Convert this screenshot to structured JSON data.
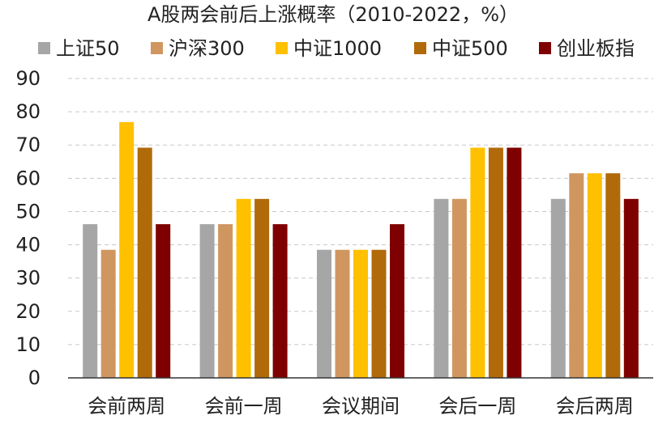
{
  "chart_data": {
    "type": "bar",
    "title": "A股两会前后上涨概率（2010-2022，%）",
    "xlabel": "",
    "ylabel": "",
    "ylim": [
      0,
      90
    ],
    "yticks": [
      "0",
      "10",
      "20",
      "30",
      "40",
      "50",
      "60",
      "70",
      "80",
      "90"
    ],
    "grid": true,
    "legend_position": "top",
    "categories": [
      "会前两周",
      "会前一周",
      "会议期间",
      "会后一周",
      "会后两周"
    ],
    "series": [
      {
        "name": "上证50",
        "color": "#a6a6a6",
        "values": [
          46.2,
          46.2,
          38.5,
          53.8,
          53.8
        ]
      },
      {
        "name": "沪深300",
        "color": "#d09660",
        "values": [
          38.5,
          46.2,
          38.5,
          53.8,
          61.5
        ]
      },
      {
        "name": "中证1000",
        "color": "#ffc000",
        "values": [
          76.9,
          53.8,
          38.5,
          69.2,
          61.5
        ]
      },
      {
        "name": "中证500",
        "color": "#b06a0a",
        "values": [
          69.2,
          53.8,
          38.5,
          69.2,
          61.5
        ]
      },
      {
        "name": "创业板指",
        "color": "#7f0000",
        "values": [
          46.2,
          46.2,
          46.2,
          69.2,
          53.8
        ]
      }
    ]
  }
}
